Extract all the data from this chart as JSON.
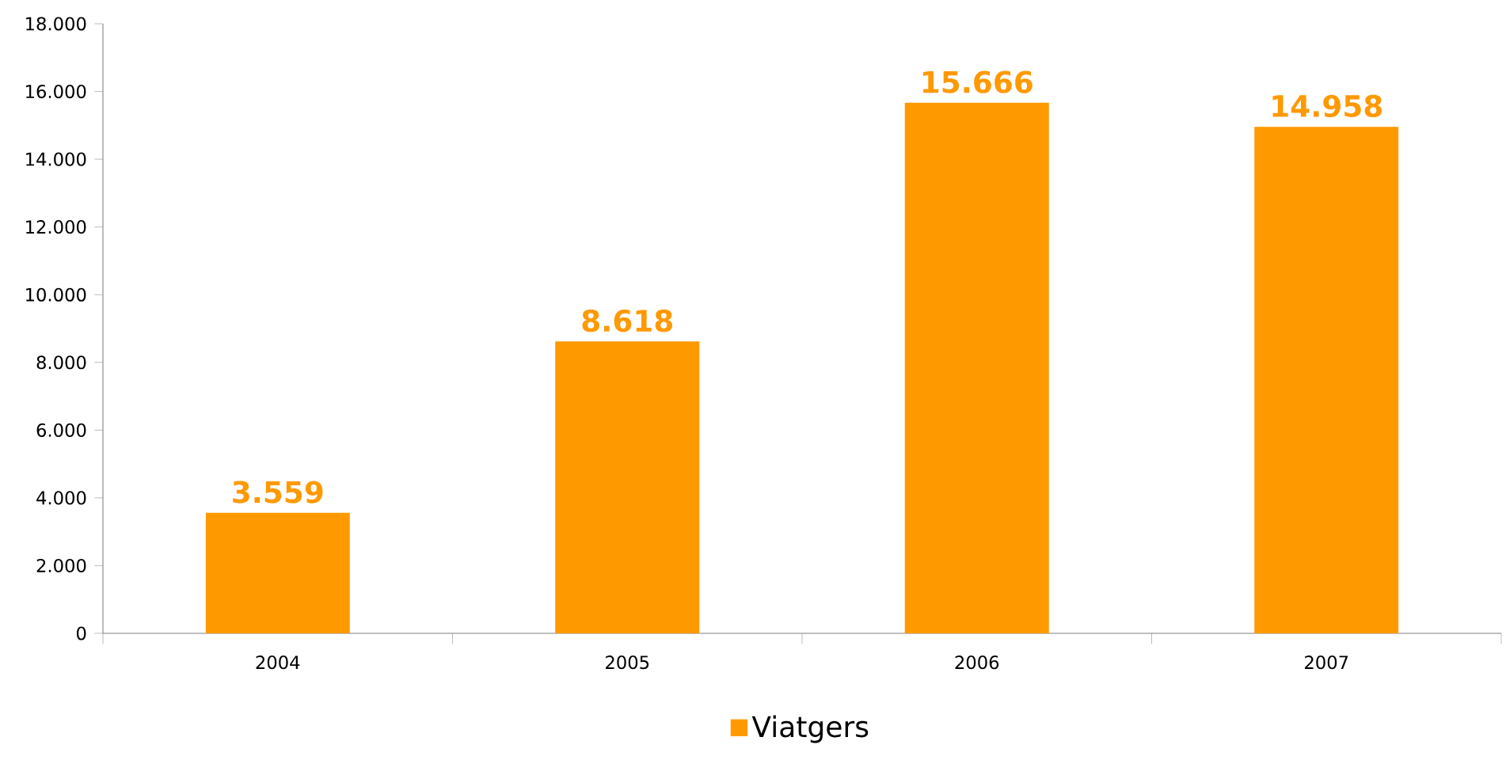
{
  "chart_data": {
    "type": "bar",
    "categories": [
      "2004",
      "2005",
      "2006",
      "2007"
    ],
    "series": [
      {
        "name": "Viatgers",
        "color": "#ff9900",
        "values": [
          3559,
          8618,
          15666,
          14958
        ]
      }
    ],
    "value_labels": [
      "3.559",
      "8.618",
      "15.666",
      "14.958"
    ],
    "ylim": [
      0,
      18000
    ],
    "yticks": [
      {
        "value": 0,
        "label": "0"
      },
      {
        "value": 2000,
        "label": "2.000"
      },
      {
        "value": 4000,
        "label": "4.000"
      },
      {
        "value": 6000,
        "label": "6.000"
      },
      {
        "value": 8000,
        "label": "8.000"
      },
      {
        "value": 10000,
        "label": "10.000"
      },
      {
        "value": 12000,
        "label": "12.000"
      },
      {
        "value": 14000,
        "label": "14.000"
      },
      {
        "value": 16000,
        "label": "16.000"
      },
      {
        "value": 18000,
        "label": "18.000"
      }
    ],
    "grid": false,
    "legend": "bottom"
  }
}
